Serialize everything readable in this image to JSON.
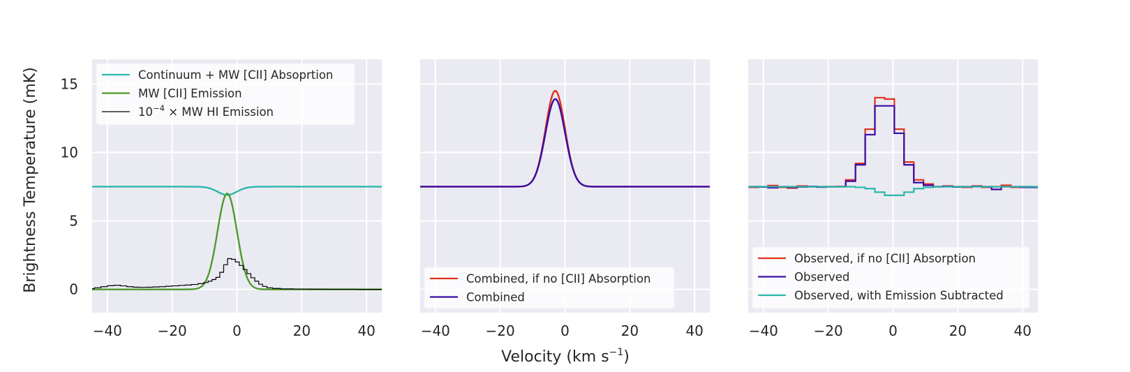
{
  "chart_data": [
    {
      "type": "line",
      "panel": "left",
      "title": "",
      "xlabel": "",
      "ylabel": "Brightness Temperature (mK)",
      "xlim": [
        -44.7,
        44.7
      ],
      "ylim": [
        -1.7,
        16.8
      ],
      "xticks": [
        -40,
        -20,
        0,
        20,
        40
      ],
      "xtick_labels": [
        "−40",
        "−20",
        "0",
        "20",
        "40"
      ],
      "yticks": [
        0,
        5,
        10,
        15
      ],
      "ytick_labels": [
        "0",
        "5",
        "10",
        "15"
      ],
      "grid": true,
      "legend_position": "top-left",
      "series": [
        {
          "name": "Continuum + MW [CII] Absoprtion",
          "color": "#2ab7a9",
          "style": "smooth",
          "model": {
            "kind": "gaussian",
            "baseline": 7.5,
            "amplitude": -0.6,
            "center": -3,
            "sigma": 3.0
          }
        },
        {
          "name": "MW [CII] Emission",
          "color": "#4e9a2c",
          "style": "smooth",
          "model": {
            "kind": "gaussian",
            "baseline": 0,
            "amplitude": 7.0,
            "center": -3,
            "sigma": 3.0
          }
        },
        {
          "name": "10⁻⁴ × MW HI Emission",
          "legend_base": "10",
          "legend_sup": "−4",
          "legend_rest": " × MW HI Emission",
          "color": "#000000",
          "style": "steps",
          "x": [
            -45,
            -43,
            -41,
            -39,
            -37,
            -35,
            -33,
            -31,
            -29,
            -27,
            -25,
            -23,
            -21,
            -19,
            -17,
            -15,
            -13,
            -11,
            -9.5,
            -8.3,
            -7.1,
            -5.9,
            -4.7,
            -3.5,
            -2.3,
            -1.1,
            0.1,
            1.3,
            2.5,
            3.7,
            4.9,
            6.1,
            7.3,
            8.5,
            10,
            12,
            15,
            20,
            25,
            30,
            35,
            40,
            45
          ],
          "y": [
            0.05,
            0.12,
            0.2,
            0.27,
            0.3,
            0.26,
            0.2,
            0.16,
            0.15,
            0.16,
            0.18,
            0.2,
            0.23,
            0.26,
            0.29,
            0.32,
            0.36,
            0.42,
            0.5,
            0.6,
            0.72,
            0.88,
            1.25,
            1.8,
            2.25,
            2.2,
            2.0,
            1.75,
            1.45,
            1.15,
            0.85,
            0.6,
            0.38,
            0.22,
            0.12,
            0.07,
            0.04,
            0.03,
            0.02,
            0.01,
            0.01,
            0.0,
            0.0
          ]
        }
      ]
    },
    {
      "type": "line",
      "panel": "middle",
      "title": "",
      "xlabel": "Velocity (km s⁻¹)",
      "xlabel_main": "Velocity (km s",
      "xlabel_sup": "−1",
      "xlabel_end": ")",
      "ylabel": "",
      "xlim": [
        -44.7,
        44.7
      ],
      "ylim": [
        -1.7,
        16.8
      ],
      "xticks": [
        -40,
        -20,
        0,
        20,
        40
      ],
      "xtick_labels": [
        "−40",
        "−20",
        "0",
        "20",
        "40"
      ],
      "yticks": [
        0,
        5,
        10,
        15
      ],
      "grid": true,
      "legend_position": "bottom-left",
      "series": [
        {
          "name": "Combined, if no [CII] Absorption",
          "color": "#e0301e",
          "style": "smooth",
          "model": {
            "kind": "gaussian",
            "baseline": 7.5,
            "amplitude": 7.0,
            "center": -3,
            "sigma": 3.0
          }
        },
        {
          "name": "Combined",
          "color": "#3a0ca3",
          "style": "smooth",
          "model": {
            "kind": "gaussian",
            "baseline": 7.5,
            "amplitude": 6.4,
            "center": -3,
            "sigma": 3.05
          }
        }
      ]
    },
    {
      "type": "line",
      "panel": "right",
      "title": "",
      "xlabel": "",
      "ylabel": "",
      "xlim": [
        -44.7,
        44.7
      ],
      "ylim": [
        -1.7,
        16.8
      ],
      "xticks": [
        -40,
        -20,
        0,
        20,
        40
      ],
      "xtick_labels": [
        "−40",
        "−20",
        "0",
        "20",
        "40"
      ],
      "yticks": [
        0,
        5,
        10,
        15
      ],
      "grid": true,
      "legend_position": "bottom-left",
      "bin_edges": [
        -44.6,
        -41.6,
        -38.6,
        -35.6,
        -32.6,
        -29.6,
        -26.6,
        -23.6,
        -20.6,
        -17.6,
        -14.6,
        -11.6,
        -8.6,
        -5.6,
        -2.6,
        0.4,
        3.4,
        6.4,
        9.4,
        12.4,
        15.4,
        18.4,
        21.4,
        24.4,
        27.4,
        30.4,
        33.4,
        36.4,
        39.4,
        42.4,
        44.7
      ],
      "series": [
        {
          "name": "Observed, if no [CII] Absorption",
          "color": "#e0301e",
          "style": "steps",
          "values": [
            7.45,
            7.5,
            7.58,
            7.45,
            7.4,
            7.55,
            7.5,
            7.5,
            7.5,
            7.52,
            8.0,
            9.2,
            11.7,
            14.0,
            13.9,
            11.7,
            9.3,
            8.0,
            7.7,
            7.5,
            7.55,
            7.5,
            7.45,
            7.55,
            7.45,
            7.5,
            7.6,
            7.45,
            7.5,
            7.48
          ]
        },
        {
          "name": "Observed",
          "color": "#3a0ca3",
          "style": "steps",
          "values": [
            7.5,
            7.48,
            7.42,
            7.5,
            7.45,
            7.48,
            7.52,
            7.47,
            7.5,
            7.5,
            7.9,
            9.1,
            11.3,
            13.4,
            13.4,
            11.4,
            9.1,
            7.8,
            7.6,
            7.5,
            7.52,
            7.48,
            7.5,
            7.52,
            7.5,
            7.3,
            7.5,
            7.5,
            7.45,
            7.45
          ]
        },
        {
          "name": "Observed, with Emission Subtracted",
          "color": "#2ab7a9",
          "style": "steps",
          "values": [
            7.5,
            7.5,
            7.5,
            7.5,
            7.5,
            7.5,
            7.5,
            7.5,
            7.5,
            7.5,
            7.5,
            7.45,
            7.36,
            7.1,
            6.87,
            6.87,
            7.1,
            7.36,
            7.45,
            7.5,
            7.5,
            7.5,
            7.5,
            7.5,
            7.5,
            7.5,
            7.5,
            7.5,
            7.5,
            7.5
          ]
        }
      ]
    }
  ]
}
